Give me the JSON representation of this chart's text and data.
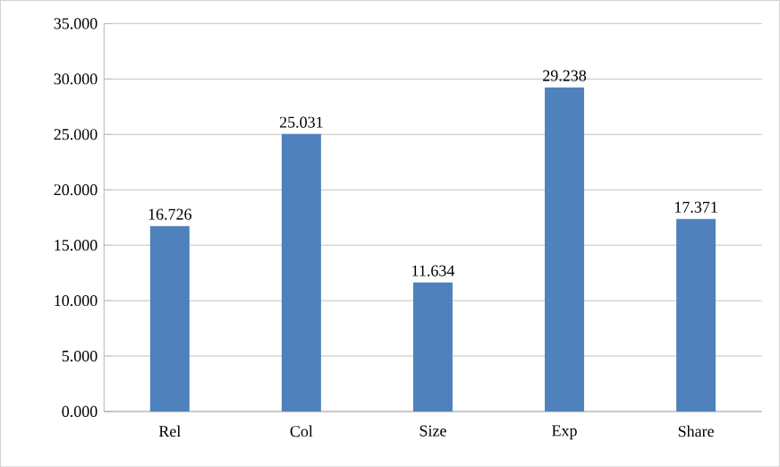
{
  "chart_data": {
    "type": "bar",
    "categories": [
      "Rel",
      "Col",
      "Size",
      "Exp",
      "Share"
    ],
    "values": [
      16.726,
      25.031,
      11.634,
      29.238,
      17.371
    ],
    "color": "#4f81bd",
    "ylim": [
      0,
      35
    ],
    "yticks": [
      {
        "value": 0,
        "label": "0.000"
      },
      {
        "value": 5,
        "label": "5.000"
      },
      {
        "value": 10,
        "label": "10.000"
      },
      {
        "value": 15,
        "label": "15.000"
      },
      {
        "value": 20,
        "label": "20.000"
      },
      {
        "value": 25,
        "label": "25.000"
      },
      {
        "value": 30,
        "label": "30.000"
      },
      {
        "value": 35,
        "label": "35.000"
      }
    ],
    "grid": "y",
    "data_labels": true
  }
}
